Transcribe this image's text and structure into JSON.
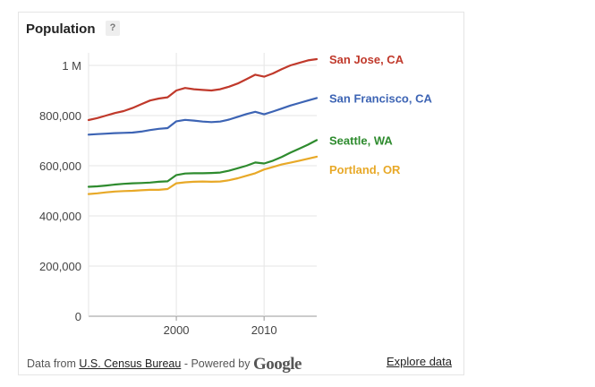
{
  "card": {
    "title": "Population",
    "help_label": "?",
    "footer": {
      "prefix": "Data from",
      "source_link": "U.S. Census Bureau",
      "separator": "- Powered by",
      "brand": "Google",
      "explore_link": "Explore data"
    }
  },
  "chart_data": {
    "type": "line",
    "title": "Population",
    "xlim": [
      1990,
      2016
    ],
    "ylim": [
      0,
      1050000
    ],
    "x_ticks": [
      {
        "value": 2000,
        "label": "2000"
      },
      {
        "value": 2010,
        "label": "2010"
      }
    ],
    "y_ticks": [
      {
        "value": 0,
        "label": "0"
      },
      {
        "value": 200000,
        "label": "200,000"
      },
      {
        "value": 400000,
        "label": "400,000"
      },
      {
        "value": 600000,
        "label": "600,000"
      },
      {
        "value": 800000,
        "label": "800,000"
      },
      {
        "value": 1000000,
        "label": "1 M"
      }
    ],
    "grid": true,
    "legend": "right",
    "series": [
      {
        "name": "San Jose, CA",
        "color": "#c0392b",
        "x": [
          1990,
          1991,
          1992,
          1993,
          1994,
          1995,
          1996,
          1997,
          1998,
          1999,
          2000,
          2001,
          2002,
          2003,
          2004,
          2005,
          2006,
          2007,
          2008,
          2009,
          2010,
          2011,
          2012,
          2013,
          2014,
          2015,
          2016
        ],
        "y": [
          782000,
          790000,
          800000,
          810000,
          818000,
          830000,
          845000,
          860000,
          868000,
          873000,
          900000,
          910000,
          905000,
          902000,
          900000,
          905000,
          915000,
          928000,
          945000,
          963000,
          955000,
          968000,
          985000,
          1000000,
          1010000,
          1020000,
          1025000
        ]
      },
      {
        "name": "San Francisco, CA",
        "color": "#3d64b4",
        "x": [
          1990,
          1991,
          1992,
          1993,
          1994,
          1995,
          1996,
          1997,
          1998,
          1999,
          2000,
          2001,
          2002,
          2003,
          2004,
          2005,
          2006,
          2007,
          2008,
          2009,
          2010,
          2011,
          2012,
          2013,
          2014,
          2015,
          2016
        ],
        "y": [
          724000,
          726000,
          728000,
          730000,
          731000,
          732000,
          736000,
          742000,
          747000,
          750000,
          777000,
          783000,
          780000,
          776000,
          774000,
          776000,
          784000,
          795000,
          806000,
          815000,
          805000,
          816000,
          828000,
          840000,
          850000,
          860000,
          870000
        ]
      },
      {
        "name": "Seattle, WA",
        "color": "#2e8b2e",
        "x": [
          1990,
          1991,
          1992,
          1993,
          1994,
          1995,
          1996,
          1997,
          1998,
          1999,
          2000,
          2001,
          2002,
          2003,
          2004,
          2005,
          2006,
          2007,
          2008,
          2009,
          2010,
          2011,
          2012,
          2013,
          2014,
          2015,
          2016
        ],
        "y": [
          516000,
          518000,
          521000,
          525000,
          528000,
          530000,
          531000,
          533000,
          536000,
          538000,
          563000,
          569000,
          570000,
          570000,
          571000,
          573000,
          580000,
          590000,
          600000,
          613000,
          609000,
          620000,
          635000,
          652000,
          668000,
          684000,
          702000
        ]
      },
      {
        "name": "Portland, OR",
        "color": "#e8a928",
        "x": [
          1990,
          1991,
          1992,
          1993,
          1994,
          1995,
          1996,
          1997,
          1998,
          1999,
          2000,
          2001,
          2002,
          2003,
          2004,
          2005,
          2006,
          2007,
          2008,
          2009,
          2010,
          2011,
          2012,
          2013,
          2014,
          2015,
          2016
        ],
        "y": [
          487000,
          490000,
          494000,
          497000,
          499000,
          500000,
          502000,
          504000,
          504000,
          507000,
          530000,
          534000,
          536000,
          537000,
          536000,
          537000,
          542000,
          550000,
          560000,
          570000,
          585000,
          595000,
          605000,
          612000,
          620000,
          628000,
          636000
        ]
      }
    ]
  }
}
